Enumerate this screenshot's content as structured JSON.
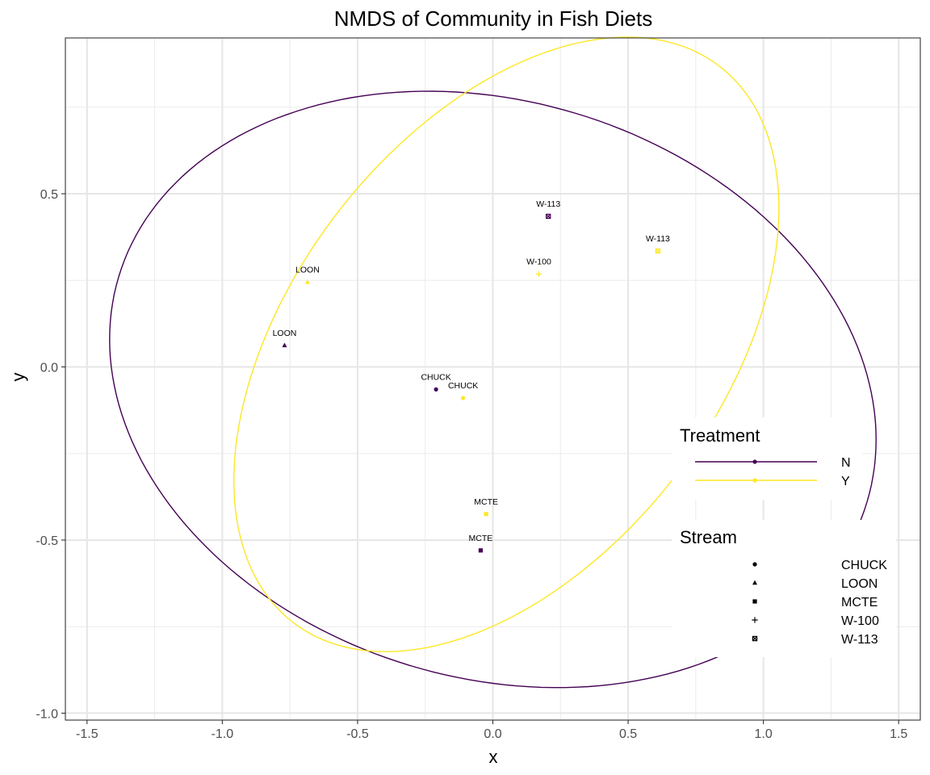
{
  "chart_data": {
    "type": "scatter",
    "title": "NMDS of Community in Fish Diets",
    "xlabel": "x",
    "ylabel": "y",
    "xlim": [
      -1.58,
      1.58
    ],
    "ylim": [
      -1.02,
      0.95
    ],
    "x_ticks": [
      -1.5,
      -1.0,
      -0.5,
      0.0,
      0.5,
      1.0,
      1.5
    ],
    "x_tick_labels": [
      "-1.5",
      "-1.0",
      "-0.5",
      "0.0",
      "0.5",
      "1.0",
      "1.5"
    ],
    "y_ticks": [
      -1.0,
      -0.5,
      0.0,
      0.5
    ],
    "y_tick_labels": [
      "-1.0",
      "-0.5",
      "0.0",
      "0.5"
    ],
    "grid": true,
    "colors": {
      "N": "#440154",
      "Y": "#FDE725"
    },
    "points": [
      {
        "stream": "CHUCK",
        "treatment": "N",
        "x": -0.21,
        "y": -0.065,
        "label": "CHUCK"
      },
      {
        "stream": "CHUCK",
        "treatment": "Y",
        "x": -0.11,
        "y": -0.09,
        "label": "CHUCK"
      },
      {
        "stream": "LOON",
        "treatment": "N",
        "x": -0.77,
        "y": 0.062,
        "label": "LOON"
      },
      {
        "stream": "LOON",
        "treatment": "Y",
        "x": -0.685,
        "y": 0.245,
        "label": "LOON"
      },
      {
        "stream": "MCTE",
        "treatment": "N",
        "x": -0.045,
        "y": -0.53,
        "label": "MCTE"
      },
      {
        "stream": "MCTE",
        "treatment": "Y",
        "x": -0.025,
        "y": -0.425,
        "label": "MCTE"
      },
      {
        "stream": "W-100",
        "treatment": "Y",
        "x": 0.17,
        "y": 0.268,
        "label": "W-100"
      },
      {
        "stream": "W-113",
        "treatment": "N",
        "x": 0.205,
        "y": 0.435,
        "label": "W-113"
      },
      {
        "stream": "W-113",
        "treatment": "Y",
        "x": 0.61,
        "y": 0.335,
        "label": "W-113"
      }
    ],
    "ellipses": [
      {
        "treatment": "N",
        "center": [
          0.0,
          -0.065
        ],
        "semi_axes": [
          1.428,
          0.842
        ],
        "angle_deg": -9
      },
      {
        "treatment": "Y",
        "center": [
          0.05,
          0.065
        ],
        "semi_axes": [
          1.146,
          0.699
        ],
        "angle_deg": 37
      }
    ],
    "legend": {
      "placement": "right-inside",
      "treatment": {
        "title": "Treatment",
        "entries": [
          "N",
          "Y"
        ]
      },
      "stream": {
        "title": "Stream",
        "entries": [
          {
            "label": "CHUCK",
            "shape": "circle"
          },
          {
            "label": "LOON",
            "shape": "triangle"
          },
          {
            "label": "MCTE",
            "shape": "square"
          },
          {
            "label": "W-100",
            "shape": "plus"
          },
          {
            "label": "W-113",
            "shape": "boxed-x"
          }
        ]
      }
    }
  }
}
